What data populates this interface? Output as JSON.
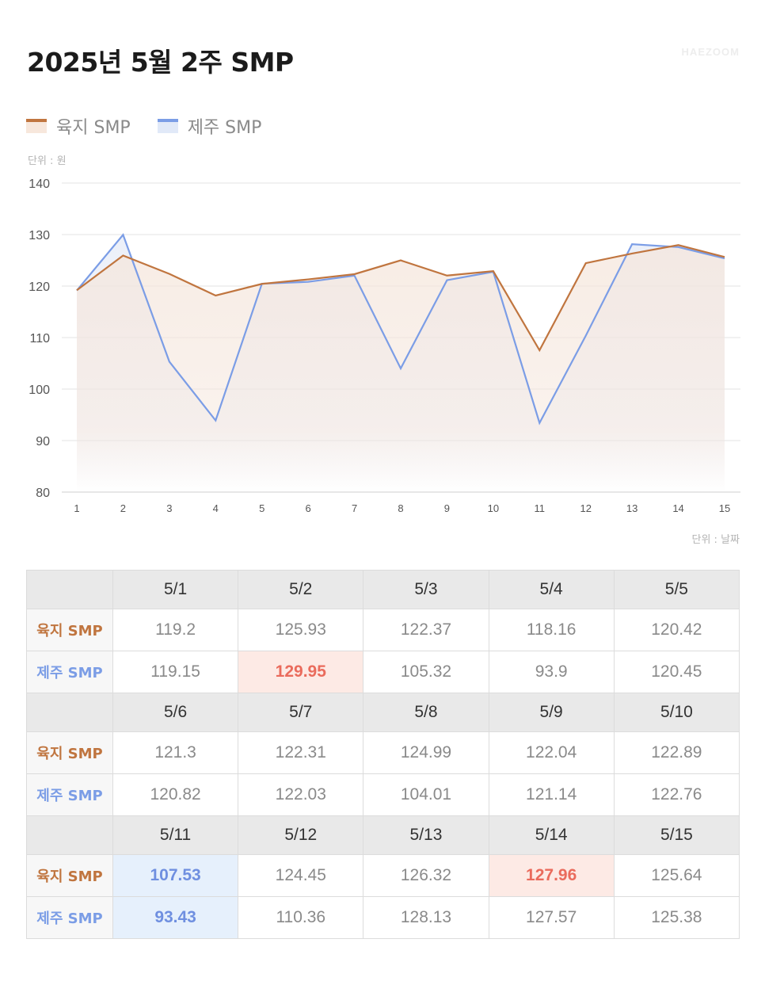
{
  "header": {
    "title": "2025년 5월 2주 SMP",
    "watermark": "HAEZOOM"
  },
  "colors": {
    "mainland": "#c0753f",
    "mainland_fill": "#f7e7dc",
    "jeju": "#7b9de6",
    "jeju_fill": "#e1e9f8",
    "max_highlight_bg": "#fdeae5",
    "max_highlight_text": "#ea6b5c",
    "min_highlight_bg": "#e6f0fc",
    "min_highlight_text": "#6f8fe0"
  },
  "legend": {
    "items": [
      {
        "label": "육지 SMP",
        "color": "#c0753f",
        "fill": "#f7e7dc"
      },
      {
        "label": "제주 SMP",
        "color": "#7b9de6",
        "fill": "#e1e9f8"
      }
    ]
  },
  "axis": {
    "y_unit": "단위 : 원",
    "x_unit": "단위 : 날짜"
  },
  "chart_data": {
    "type": "line",
    "title": "2025년 5월 2주 SMP",
    "xlabel": "단위 : 날짜",
    "ylabel": "단위 : 원",
    "x": [
      1,
      2,
      3,
      4,
      5,
      6,
      7,
      8,
      9,
      10,
      11,
      12,
      13,
      14,
      15
    ],
    "y_ticks": [
      80,
      90,
      100,
      110,
      120,
      130,
      140
    ],
    "ylim": [
      80,
      140
    ],
    "grid": true,
    "legend_position": "top-left",
    "series": [
      {
        "name": "육지 SMP",
        "color": "#c0753f",
        "values": [
          119.2,
          125.93,
          122.37,
          118.16,
          120.42,
          121.3,
          122.31,
          124.99,
          122.04,
          122.89,
          107.53,
          124.45,
          126.32,
          127.96,
          125.64
        ]
      },
      {
        "name": "제주 SMP",
        "color": "#7b9de6",
        "values": [
          119.15,
          129.95,
          105.32,
          93.9,
          120.45,
          120.82,
          122.03,
          104.01,
          121.14,
          122.76,
          93.43,
          110.36,
          128.13,
          127.57,
          125.38
        ]
      }
    ]
  },
  "table": {
    "row_labels": [
      "육지 SMP",
      "제주 SMP"
    ],
    "blocks": [
      {
        "dates": [
          "5/1",
          "5/2",
          "5/3",
          "5/4",
          "5/5"
        ],
        "mainland": [
          "119.2",
          "125.93",
          "122.37",
          "118.16",
          "120.42"
        ],
        "jeju": [
          "119.15",
          "129.95",
          "105.32",
          "93.9",
          "120.45"
        ]
      },
      {
        "dates": [
          "5/6",
          "5/7",
          "5/8",
          "5/9",
          "5/10"
        ],
        "mainland": [
          "121.3",
          "122.31",
          "124.99",
          "122.04",
          "122.89"
        ],
        "jeju": [
          "120.82",
          "122.03",
          "104.01",
          "121.14",
          "122.76"
        ]
      },
      {
        "dates": [
          "5/11",
          "5/12",
          "5/13",
          "5/14",
          "5/15"
        ],
        "mainland": [
          "107.53",
          "124.45",
          "126.32",
          "127.96",
          "125.64"
        ],
        "jeju": [
          "93.43",
          "110.36",
          "128.13",
          "127.57",
          "125.38"
        ]
      }
    ],
    "highlights": [
      {
        "block": 0,
        "row": "jeju",
        "col": 1,
        "type": "max"
      },
      {
        "block": 2,
        "row": "mainland",
        "col": 3,
        "type": "max"
      },
      {
        "block": 2,
        "row": "mainland",
        "col": 0,
        "type": "min"
      },
      {
        "block": 2,
        "row": "jeju",
        "col": 0,
        "type": "min"
      }
    ]
  }
}
